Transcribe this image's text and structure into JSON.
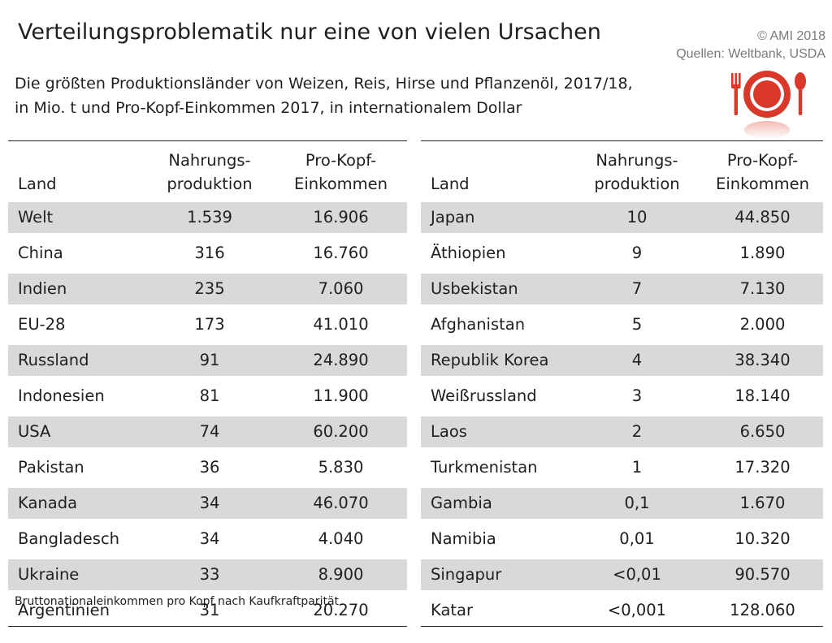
{
  "header": {
    "title": "Verteilungsproblematik nur eine von vielen Ursachen",
    "copyright": "© AMI 2018",
    "sources": "Quellen: Weltbank, USDA",
    "subtitle_line1": "Die größten Produktionsländer von Weizen, Reis, Hirse und Pflanzenöl, 2017/18,",
    "subtitle_line2": "in Mio. t und Pro-Kopf-Einkommen 2017, in internationalem Dollar"
  },
  "colors": {
    "stripe": "#d9d9d9",
    "logo_red": "#d9382a"
  },
  "logo": {
    "icon": "plate-fork-spoon-icon"
  },
  "footnote": "Bruttonationaleinkommen pro Kopf nach Kaufkraftparität",
  "chart_data": [
    {
      "type": "table",
      "columns": {
        "land": "Land",
        "prod_line1": "Nahrungs-",
        "prod_line2": "produktion",
        "income_line1": "Pro-Kopf-",
        "income_line2": "Einkommen"
      },
      "rows": [
        {
          "land": "Welt",
          "production": "1.539",
          "income": "16.906"
        },
        {
          "land": "China",
          "production": "316",
          "income": "16.760"
        },
        {
          "land": "Indien",
          "production": "235",
          "income": "7.060"
        },
        {
          "land": "EU-28",
          "production": "173",
          "income": "41.010"
        },
        {
          "land": "Russland",
          "production": "91",
          "income": "24.890"
        },
        {
          "land": "Indonesien",
          "production": "81",
          "income": "11.900"
        },
        {
          "land": "USA",
          "production": "74",
          "income": "60.200"
        },
        {
          "land": "Pakistan",
          "production": "36",
          "income": "5.830"
        },
        {
          "land": "Kanada",
          "production": "34",
          "income": "46.070"
        },
        {
          "land": "Bangladesch",
          "production": "34",
          "income": "4.040"
        },
        {
          "land": "Ukraine",
          "production": "33",
          "income": "8.900"
        },
        {
          "land": "Argentinien",
          "production": "31",
          "income": "20.270"
        }
      ]
    },
    {
      "type": "table",
      "columns": {
        "land": "Land",
        "prod_line1": "Nahrungs-",
        "prod_line2": "produktion",
        "income_line1": "Pro-Kopf-",
        "income_line2": "Einkommen"
      },
      "rows": [
        {
          "land": "Japan",
          "production": "10",
          "income": "44.850"
        },
        {
          "land": "Äthiopien",
          "production": "9",
          "income": "1.890"
        },
        {
          "land": "Usbekistan",
          "production": "7",
          "income": "7.130"
        },
        {
          "land": "Afghanistan",
          "production": "5",
          "income": "2.000"
        },
        {
          "land": "Republik Korea",
          "production": "4",
          "income": "38.340"
        },
        {
          "land": "Weißrussland",
          "production": "3",
          "income": "18.140"
        },
        {
          "land": "Laos",
          "production": "2",
          "income": "6.650"
        },
        {
          "land": "Turkmenistan",
          "production": "1",
          "income": "17.320"
        },
        {
          "land": "Gambia",
          "production": "0,1",
          "income": "1.670"
        },
        {
          "land": "Namibia",
          "production": "0,01",
          "income": "10.320"
        },
        {
          "land": "Singapur",
          "production": "<0,01",
          "income": "90.570"
        },
        {
          "land": "Katar",
          "production": "<0,001",
          "income": "128.060"
        }
      ]
    }
  ]
}
